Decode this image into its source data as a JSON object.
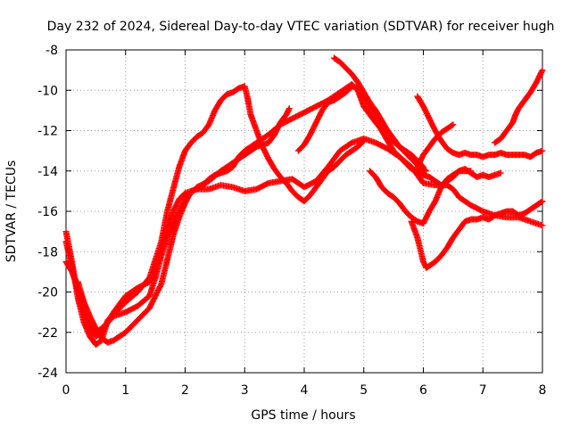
{
  "chart_data": {
    "type": "scatter",
    "title": "Day 232 of 2024, Sidereal Day-to-day VTEC variation (SDTVAR) for receiver hugh",
    "xlabel": "GPS time / hours",
    "ylabel": "SDTVAR / TECUs",
    "xlim": [
      0,
      8
    ],
    "ylim": [
      -24,
      -8
    ],
    "xticks": [
      0,
      1,
      2,
      3,
      4,
      5,
      6,
      7,
      8
    ],
    "yticks": [
      -24,
      -22,
      -20,
      -18,
      -16,
      -14,
      -12,
      -10,
      -8
    ],
    "xtick_labels": [
      "0",
      "1",
      "2",
      "3",
      "4",
      "5",
      "6",
      "7",
      "8"
    ],
    "ytick_labels": [
      "-24",
      "-22",
      "-20",
      "-18",
      "-16",
      "-14",
      "-12",
      "-10",
      "-8"
    ],
    "grid": true,
    "marker": "plus",
    "marker_color": "#ff0000",
    "series": [
      {
        "points": [
          [
            0.0,
            -17.0
          ],
          [
            0.1,
            -18.5
          ],
          [
            0.2,
            -20.3
          ],
          [
            0.3,
            -21.5
          ],
          [
            0.4,
            -22.2
          ],
          [
            0.5,
            -22.6
          ],
          [
            0.6,
            -22.4
          ],
          [
            0.7,
            -21.4
          ],
          [
            0.8,
            -21.1
          ],
          [
            1.0,
            -20.5
          ],
          [
            1.2,
            -20.0
          ],
          [
            1.4,
            -19.3
          ],
          [
            1.6,
            -17.5
          ],
          [
            1.7,
            -16.0
          ],
          [
            1.8,
            -14.9
          ],
          [
            1.9,
            -13.8
          ],
          [
            2.0,
            -13.0
          ],
          [
            2.1,
            -12.6
          ],
          [
            2.2,
            -12.3
          ],
          [
            2.3,
            -12.1
          ],
          [
            2.4,
            -11.7
          ],
          [
            2.5,
            -11.0
          ],
          [
            2.6,
            -10.5
          ],
          [
            2.7,
            -10.2
          ],
          [
            2.8,
            -10.1
          ],
          [
            2.9,
            -9.9
          ],
          [
            3.0,
            -9.8
          ],
          [
            3.05,
            -10.4
          ],
          [
            3.1,
            -11.2
          ],
          [
            3.2,
            -12.0
          ],
          [
            3.3,
            -12.8
          ],
          [
            3.4,
            -13.4
          ],
          [
            3.5,
            -13.9
          ],
          [
            3.6,
            -14.3
          ],
          [
            3.7,
            -14.6
          ],
          [
            3.8,
            -15.0
          ],
          [
            3.9,
            -15.3
          ],
          [
            4.0,
            -15.5
          ],
          [
            4.1,
            -15.2
          ],
          [
            4.2,
            -14.8
          ],
          [
            4.3,
            -14.4
          ],
          [
            4.4,
            -14.0
          ],
          [
            4.5,
            -13.8
          ],
          [
            4.6,
            -13.5
          ],
          [
            4.7,
            -13.2
          ],
          [
            4.8,
            -13.0
          ],
          [
            4.9,
            -12.8
          ],
          [
            5.0,
            -12.5
          ]
        ]
      },
      {
        "points": [
          [
            0.0,
            -17.5
          ],
          [
            0.1,
            -18.8
          ],
          [
            0.2,
            -20.0
          ],
          [
            0.3,
            -21.0
          ],
          [
            0.4,
            -21.8
          ],
          [
            0.5,
            -22.2
          ],
          [
            0.6,
            -22.0
          ],
          [
            0.7,
            -21.5
          ],
          [
            0.8,
            -21.0
          ],
          [
            0.9,
            -20.6
          ],
          [
            1.0,
            -20.2
          ],
          [
            1.2,
            -19.8
          ],
          [
            1.4,
            -19.5
          ],
          [
            1.5,
            -18.8
          ],
          [
            1.6,
            -17.8
          ],
          [
            1.7,
            -16.8
          ],
          [
            1.8,
            -16.0
          ],
          [
            1.9,
            -15.4
          ],
          [
            2.0,
            -15.1
          ],
          [
            2.2,
            -14.9
          ],
          [
            2.4,
            -14.9
          ],
          [
            2.6,
            -14.7
          ],
          [
            2.8,
            -14.8
          ],
          [
            3.0,
            -15.0
          ],
          [
            3.2,
            -14.9
          ],
          [
            3.4,
            -14.6
          ],
          [
            3.6,
            -14.5
          ],
          [
            3.8,
            -14.4
          ],
          [
            4.0,
            -14.8
          ],
          [
            4.2,
            -14.5
          ],
          [
            4.4,
            -13.8
          ],
          [
            4.6,
            -13.0
          ],
          [
            4.8,
            -12.6
          ],
          [
            5.0,
            -12.4
          ],
          [
            5.2,
            -12.6
          ],
          [
            5.4,
            -12.9
          ],
          [
            5.6,
            -13.3
          ],
          [
            5.8,
            -13.8
          ],
          [
            5.9,
            -14.2
          ],
          [
            6.0,
            -14.6
          ],
          [
            6.2,
            -14.7
          ],
          [
            6.4,
            -14.7
          ],
          [
            6.5,
            -14.9
          ],
          [
            6.6,
            -15.3
          ],
          [
            6.8,
            -15.7
          ],
          [
            7.0,
            -16.0
          ],
          [
            7.2,
            -16.2
          ],
          [
            7.4,
            -16.3
          ],
          [
            7.6,
            -16.3
          ],
          [
            7.8,
            -16.5
          ],
          [
            8.0,
            -16.7
          ]
        ]
      },
      {
        "points": [
          [
            0.0,
            -18.5
          ],
          [
            0.1,
            -19.0
          ],
          [
            0.2,
            -19.8
          ],
          [
            0.3,
            -20.5
          ],
          [
            0.4,
            -21.2
          ],
          [
            0.5,
            -21.8
          ],
          [
            0.6,
            -22.3
          ],
          [
            0.7,
            -22.5
          ],
          [
            0.8,
            -22.4
          ],
          [
            0.9,
            -22.2
          ],
          [
            1.0,
            -22.0
          ],
          [
            1.2,
            -21.4
          ],
          [
            1.4,
            -20.8
          ],
          [
            1.6,
            -19.6
          ],
          [
            1.7,
            -18.4
          ],
          [
            1.8,
            -17.2
          ],
          [
            1.9,
            -16.3
          ],
          [
            2.0,
            -15.6
          ],
          [
            2.1,
            -15.0
          ],
          [
            2.2,
            -14.9
          ],
          [
            2.3,
            -14.7
          ],
          [
            2.4,
            -14.4
          ],
          [
            2.5,
            -14.2
          ],
          [
            2.6,
            -14.1
          ],
          [
            2.7,
            -14.0
          ],
          [
            2.8,
            -13.8
          ],
          [
            2.9,
            -13.3
          ],
          [
            3.0,
            -13.0
          ],
          [
            3.2,
            -12.6
          ],
          [
            3.4,
            -12.2
          ],
          [
            3.6,
            -11.7
          ],
          [
            3.8,
            -11.4
          ],
          [
            4.0,
            -11.1
          ],
          [
            4.2,
            -10.8
          ],
          [
            4.4,
            -10.5
          ],
          [
            4.6,
            -10.1
          ],
          [
            4.7,
            -9.9
          ],
          [
            4.8,
            -9.7
          ],
          [
            4.9,
            -10.0
          ],
          [
            5.0,
            -10.8
          ],
          [
            5.2,
            -11.6
          ],
          [
            5.4,
            -12.3
          ],
          [
            5.6,
            -12.8
          ],
          [
            5.8,
            -13.2
          ],
          [
            5.9,
            -13.5
          ],
          [
            6.0,
            -13.8
          ]
        ]
      },
      {
        "points": [
          [
            0.2,
            -19.5
          ],
          [
            0.3,
            -20.5
          ],
          [
            0.4,
            -21.5
          ],
          [
            0.5,
            -22.0
          ],
          [
            0.6,
            -21.8
          ],
          [
            0.7,
            -21.5
          ],
          [
            0.8,
            -21.2
          ],
          [
            1.0,
            -21.0
          ],
          [
            1.2,
            -20.7
          ],
          [
            1.4,
            -20.2
          ],
          [
            1.5,
            -19.3
          ],
          [
            1.6,
            -18.2
          ],
          [
            1.7,
            -17.3
          ],
          [
            1.8,
            -16.6
          ],
          [
            1.9,
            -16.0
          ],
          [
            2.0,
            -15.4
          ],
          [
            2.2,
            -14.8
          ],
          [
            2.4,
            -14.5
          ],
          [
            2.6,
            -14.0
          ],
          [
            2.8,
            -13.6
          ],
          [
            3.0,
            -13.2
          ],
          [
            3.1,
            -13.0
          ],
          [
            3.2,
            -12.8
          ],
          [
            3.3,
            -12.7
          ],
          [
            3.4,
            -12.6
          ],
          [
            3.5,
            -12.2
          ],
          [
            3.6,
            -11.6
          ],
          [
            3.7,
            -11.2
          ],
          [
            3.75,
            -10.9
          ]
        ]
      },
      {
        "points": [
          [
            3.9,
            -13.0
          ],
          [
            4.0,
            -12.7
          ],
          [
            4.1,
            -12.2
          ],
          [
            4.2,
            -11.6
          ],
          [
            4.3,
            -11.0
          ],
          [
            4.4,
            -10.6
          ],
          [
            4.5,
            -10.5
          ],
          [
            4.6,
            -10.3
          ],
          [
            4.7,
            -10.1
          ],
          [
            4.8,
            -9.8
          ],
          [
            4.9,
            -9.9
          ],
          [
            5.0,
            -10.2
          ],
          [
            5.1,
            -10.8
          ],
          [
            5.2,
            -11.5
          ],
          [
            5.3,
            -12.0
          ],
          [
            5.4,
            -12.5
          ],
          [
            5.5,
            -13.0
          ],
          [
            5.6,
            -13.3
          ],
          [
            5.7,
            -13.6
          ],
          [
            5.8,
            -13.9
          ],
          [
            5.9,
            -14.0
          ],
          [
            6.0,
            -14.2
          ],
          [
            6.1,
            -14.3
          ],
          [
            6.2,
            -14.5
          ],
          [
            6.3,
            -14.7
          ],
          [
            6.4,
            -14.5
          ],
          [
            6.5,
            -14.3
          ],
          [
            6.6,
            -14.0
          ],
          [
            6.7,
            -13.9
          ],
          [
            6.8,
            -14.1
          ],
          [
            6.9,
            -14.3
          ],
          [
            7.0,
            -14.2
          ],
          [
            7.1,
            -14.3
          ],
          [
            7.2,
            -14.2
          ],
          [
            7.3,
            -14.1
          ]
        ]
      },
      {
        "points": [
          [
            4.5,
            -8.4
          ],
          [
            4.6,
            -8.6
          ],
          [
            4.7,
            -8.9
          ],
          [
            4.8,
            -9.2
          ],
          [
            4.9,
            -9.6
          ],
          [
            5.0,
            -10.1
          ],
          [
            5.1,
            -10.6
          ],
          [
            5.2,
            -11.0
          ],
          [
            5.3,
            -11.5
          ],
          [
            5.4,
            -12.0
          ],
          [
            5.5,
            -12.4
          ],
          [
            5.6,
            -12.8
          ],
          [
            5.7,
            -13.1
          ],
          [
            5.8,
            -13.4
          ],
          [
            5.9,
            -13.7
          ],
          [
            6.0,
            -13.9
          ],
          [
            6.05,
            -14.0
          ]
        ]
      },
      {
        "points": [
          [
            5.9,
            -10.3
          ],
          [
            6.0,
            -10.8
          ],
          [
            6.1,
            -11.4
          ],
          [
            6.2,
            -12.0
          ],
          [
            6.3,
            -12.5
          ],
          [
            6.4,
            -12.9
          ],
          [
            6.5,
            -13.1
          ],
          [
            6.6,
            -13.2
          ],
          [
            6.7,
            -13.1
          ],
          [
            6.8,
            -13.2
          ],
          [
            6.9,
            -13.2
          ],
          [
            7.0,
            -13.3
          ],
          [
            7.1,
            -13.2
          ],
          [
            7.2,
            -13.2
          ],
          [
            7.3,
            -13.1
          ],
          [
            7.4,
            -13.2
          ],
          [
            7.5,
            -13.2
          ],
          [
            7.6,
            -13.2
          ],
          [
            7.7,
            -13.2
          ],
          [
            7.8,
            -13.3
          ],
          [
            7.9,
            -13.1
          ],
          [
            8.0,
            -13.0
          ]
        ]
      },
      {
        "points": [
          [
            5.9,
            -13.8
          ],
          [
            6.0,
            -13.2
          ],
          [
            6.1,
            -12.8
          ],
          [
            6.2,
            -12.4
          ],
          [
            6.3,
            -12.1
          ],
          [
            6.4,
            -11.9
          ],
          [
            6.5,
            -11.7
          ]
        ]
      },
      {
        "points": [
          [
            5.1,
            -14.0
          ],
          [
            5.2,
            -14.3
          ],
          [
            5.3,
            -14.8
          ],
          [
            5.4,
            -15.1
          ],
          [
            5.5,
            -15.3
          ],
          [
            5.6,
            -15.6
          ],
          [
            5.7,
            -16.0
          ],
          [
            5.8,
            -16.3
          ],
          [
            5.9,
            -16.5
          ],
          [
            6.0,
            -16.6
          ],
          [
            6.1,
            -16.0
          ],
          [
            6.2,
            -15.5
          ],
          [
            6.3,
            -14.8
          ],
          [
            6.4,
            -14.4
          ],
          [
            6.5,
            -14.2
          ],
          [
            6.6,
            -14.0
          ],
          [
            6.7,
            -14.0
          ],
          [
            6.8,
            -14.0
          ]
        ]
      },
      {
        "points": [
          [
            5.8,
            -16.5
          ],
          [
            5.9,
            -17.3
          ],
          [
            6.0,
            -18.5
          ],
          [
            6.05,
            -18.8
          ],
          [
            6.1,
            -18.7
          ],
          [
            6.2,
            -18.5
          ],
          [
            6.3,
            -18.2
          ],
          [
            6.4,
            -17.8
          ],
          [
            6.5,
            -17.3
          ],
          [
            6.6,
            -16.9
          ],
          [
            6.7,
            -16.5
          ],
          [
            6.8,
            -16.4
          ],
          [
            6.9,
            -16.4
          ],
          [
            7.0,
            -16.3
          ],
          [
            7.1,
            -16.4
          ],
          [
            7.2,
            -16.2
          ],
          [
            7.3,
            -16.1
          ],
          [
            7.4,
            -16.0
          ],
          [
            7.5,
            -16.0
          ],
          [
            7.6,
            -16.2
          ],
          [
            7.7,
            -16.1
          ],
          [
            7.8,
            -15.9
          ],
          [
            7.9,
            -15.7
          ],
          [
            8.0,
            -15.5
          ]
        ]
      },
      {
        "points": [
          [
            7.2,
            -12.6
          ],
          [
            7.3,
            -12.4
          ],
          [
            7.4,
            -12.0
          ],
          [
            7.5,
            -11.6
          ],
          [
            7.55,
            -11.2
          ],
          [
            7.6,
            -10.9
          ],
          [
            7.7,
            -10.5
          ],
          [
            7.8,
            -10.1
          ],
          [
            7.9,
            -9.6
          ],
          [
            8.0,
            -9.0
          ]
        ]
      }
    ]
  }
}
